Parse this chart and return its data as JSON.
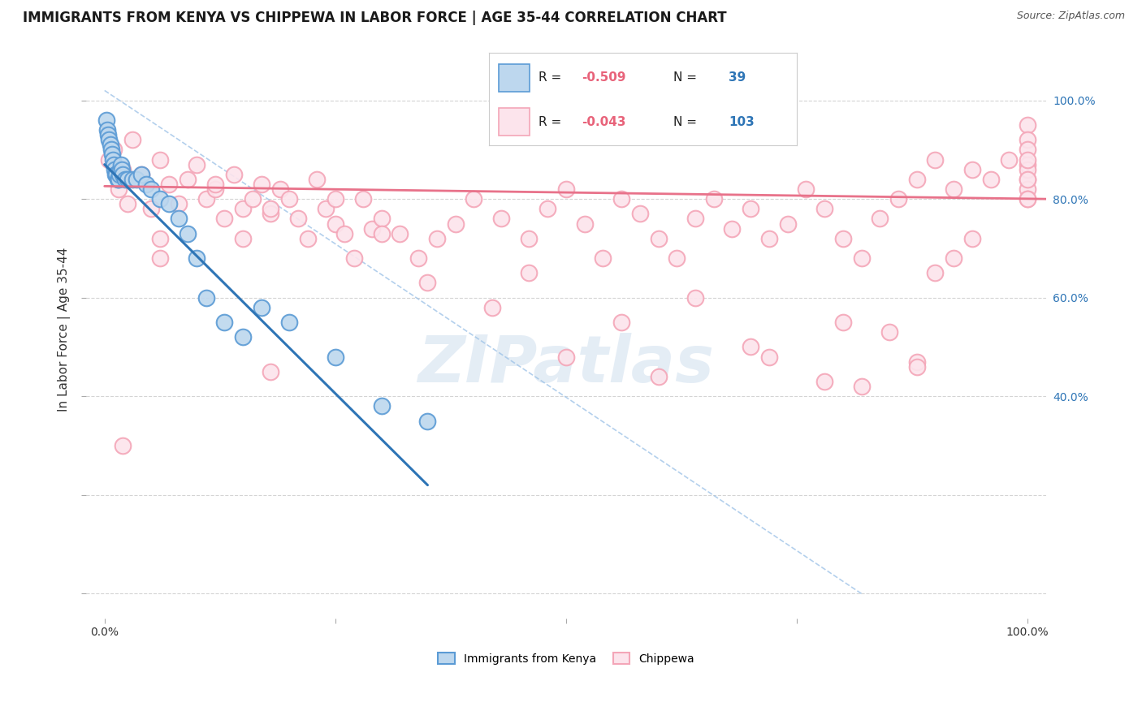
{
  "title": "IMMIGRANTS FROM KENYA VS CHIPPEWA IN LABOR FORCE | AGE 35-44 CORRELATION CHART",
  "source": "Source: ZipAtlas.com",
  "ylabel": "In Labor Force | Age 35-44",
  "xlim": [
    -0.02,
    1.02
  ],
  "ylim": [
    -0.05,
    1.12
  ],
  "legend_r1": "R = -0.509",
  "legend_n1": "N =  39",
  "legend_r2": "R = -0.043",
  "legend_n2": "N = 103",
  "kenya_edge_color": "#5b9bd5",
  "kenya_face_color": "#bdd7ee",
  "chippewa_edge_color": "#f4a6b8",
  "chippewa_face_color": "#fce4ec",
  "kenya_line_color": "#2e75b6",
  "chippewa_line_color": "#e8728a",
  "diag_line_color": "#a0c4e8",
  "watermark_color": "#c5d8eb",
  "background_color": "#ffffff",
  "grid_color": "#d0d0d0",
  "right_tick_color": "#2e75b6",
  "title_fontsize": 12,
  "source_fontsize": 9,
  "axis_label_fontsize": 11,
  "tick_fontsize": 10,
  "legend_fontsize": 11,
  "kenya_x": [
    0.002,
    0.003,
    0.004,
    0.005,
    0.006,
    0.007,
    0.008,
    0.009,
    0.01,
    0.011,
    0.012,
    0.013,
    0.014,
    0.015,
    0.016,
    0.017,
    0.018,
    0.019,
    0.02,
    0.022,
    0.025,
    0.03,
    0.035,
    0.04,
    0.045,
    0.05,
    0.06,
    0.07,
    0.08,
    0.09,
    0.1,
    0.11,
    0.13,
    0.15,
    0.17,
    0.2,
    0.25,
    0.3,
    0.35
  ],
  "kenya_y": [
    0.96,
    0.94,
    0.93,
    0.92,
    0.91,
    0.9,
    0.89,
    0.88,
    0.87,
    0.86,
    0.85,
    0.85,
    0.84,
    0.84,
    0.85,
    0.86,
    0.87,
    0.86,
    0.85,
    0.84,
    0.84,
    0.84,
    0.84,
    0.85,
    0.83,
    0.82,
    0.8,
    0.79,
    0.76,
    0.73,
    0.68,
    0.6,
    0.55,
    0.52,
    0.58,
    0.55,
    0.48,
    0.38,
    0.35
  ],
  "chippewa_x": [
    0.005,
    0.01,
    0.015,
    0.02,
    0.025,
    0.03,
    0.04,
    0.05,
    0.06,
    0.07,
    0.08,
    0.09,
    0.1,
    0.11,
    0.12,
    0.13,
    0.14,
    0.15,
    0.16,
    0.17,
    0.18,
    0.19,
    0.2,
    0.21,
    0.22,
    0.23,
    0.24,
    0.25,
    0.26,
    0.27,
    0.28,
    0.29,
    0.3,
    0.32,
    0.34,
    0.36,
    0.38,
    0.4,
    0.43,
    0.46,
    0.48,
    0.5,
    0.52,
    0.54,
    0.56,
    0.58,
    0.6,
    0.62,
    0.64,
    0.66,
    0.68,
    0.7,
    0.72,
    0.74,
    0.76,
    0.78,
    0.8,
    0.82,
    0.84,
    0.86,
    0.88,
    0.9,
    0.92,
    0.94,
    0.96,
    0.98,
    1.0,
    1.0,
    1.0,
    1.0,
    1.0,
    1.0,
    1.0,
    1.0,
    1.0,
    1.0,
    1.0,
    0.06,
    0.12,
    0.18,
    0.3,
    0.42,
    0.5,
    0.6,
    0.7,
    0.8,
    0.85,
    0.88,
    0.9,
    0.92,
    0.94,
    0.88,
    0.82,
    0.78,
    0.72,
    0.25,
    0.15,
    0.06,
    0.02,
    0.56,
    0.35,
    0.64,
    0.46,
    0.18
  ],
  "chippewa_y": [
    0.88,
    0.9,
    0.82,
    0.86,
    0.79,
    0.92,
    0.85,
    0.78,
    0.88,
    0.83,
    0.79,
    0.84,
    0.87,
    0.8,
    0.82,
    0.76,
    0.85,
    0.78,
    0.8,
    0.83,
    0.77,
    0.82,
    0.8,
    0.76,
    0.72,
    0.84,
    0.78,
    0.75,
    0.73,
    0.68,
    0.8,
    0.74,
    0.76,
    0.73,
    0.68,
    0.72,
    0.75,
    0.8,
    0.76,
    0.72,
    0.78,
    0.82,
    0.75,
    0.68,
    0.8,
    0.77,
    0.72,
    0.68,
    0.76,
    0.8,
    0.74,
    0.78,
    0.72,
    0.75,
    0.82,
    0.78,
    0.72,
    0.68,
    0.76,
    0.8,
    0.84,
    0.88,
    0.82,
    0.86,
    0.84,
    0.88,
    0.95,
    0.92,
    0.9,
    0.87,
    0.84,
    0.82,
    0.8,
    0.86,
    0.88,
    0.84,
    0.8,
    0.72,
    0.83,
    0.78,
    0.73,
    0.58,
    0.48,
    0.44,
    0.5,
    0.55,
    0.53,
    0.47,
    0.65,
    0.68,
    0.72,
    0.46,
    0.42,
    0.43,
    0.48,
    0.8,
    0.72,
    0.68,
    0.3,
    0.55,
    0.63,
    0.6,
    0.65,
    0.45
  ],
  "kenya_line_x": [
    0.0,
    0.35
  ],
  "kenya_line_y": [
    0.87,
    0.22
  ],
  "chippewa_line_x": [
    0.0,
    1.02
  ],
  "chippewa_line_y": [
    0.826,
    0.8
  ],
  "diag_line_x": [
    0.0,
    0.82
  ],
  "diag_line_y": [
    1.02,
    0.0
  ]
}
